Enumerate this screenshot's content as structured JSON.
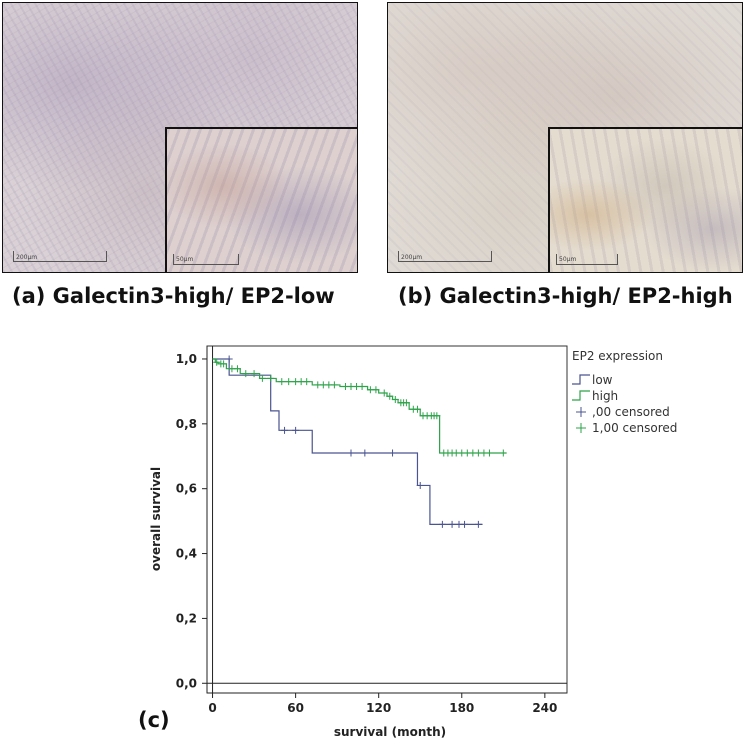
{
  "panels": [
    {
      "caption": "(a) Galectin3-high/ EP2-low",
      "scale_main": "200µm",
      "scale_inset": "50µm"
    },
    {
      "caption": "(b) Galectin3-high/ EP2-high",
      "scale_main": "200µm",
      "scale_inset": "50µm"
    }
  ],
  "panel_c_label": "(c)",
  "chart_data": {
    "type": "line",
    "subtype": "kaplan-meier",
    "title": "",
    "xlabel": "survival (month)",
    "ylabel": "overall survival",
    "xlim": [
      -4,
      256
    ],
    "ylim": [
      -0.03,
      1.04
    ],
    "xticks": [
      0,
      60,
      120,
      180,
      240
    ],
    "yticks": [
      0.0,
      0.2,
      0.4,
      0.6,
      0.8,
      1.0
    ],
    "xtick_labels": [
      "0",
      "60",
      "120",
      "180",
      "240"
    ],
    "ytick_labels": [
      "0,0",
      "0,2",
      "0,4",
      "0,6",
      "0,8",
      "1,0"
    ],
    "legend": {
      "title": "EP2 expression",
      "placement": "top-right",
      "entries": [
        "low",
        "high",
        ",00 censored",
        "1,00 censored"
      ]
    },
    "series": [
      {
        "name": "low",
        "color": "#4a5490",
        "steps": [
          [
            0,
            1.0
          ],
          [
            12,
            0.95
          ],
          [
            42,
            0.84
          ],
          [
            48,
            0.78
          ],
          [
            72,
            0.71
          ],
          [
            148,
            0.61
          ],
          [
            157,
            0.49
          ],
          [
            195,
            0.49
          ]
        ],
        "censored": [
          [
            12,
            1.0
          ],
          [
            52,
            0.78
          ],
          [
            60,
            0.78
          ],
          [
            100,
            0.71
          ],
          [
            110,
            0.71
          ],
          [
            130,
            0.71
          ],
          [
            150,
            0.61
          ],
          [
            166,
            0.49
          ],
          [
            173,
            0.49
          ],
          [
            178,
            0.49
          ],
          [
            182,
            0.49
          ],
          [
            192,
            0.49
          ]
        ]
      },
      {
        "name": "high",
        "color": "#2ea34a",
        "steps": [
          [
            0,
            1.0
          ],
          [
            2,
            0.99
          ],
          [
            4,
            0.985
          ],
          [
            10,
            0.97
          ],
          [
            20,
            0.955
          ],
          [
            34,
            0.94
          ],
          [
            46,
            0.93
          ],
          [
            72,
            0.92
          ],
          [
            92,
            0.915
          ],
          [
            112,
            0.905
          ],
          [
            120,
            0.895
          ],
          [
            126,
            0.885
          ],
          [
            130,
            0.875
          ],
          [
            134,
            0.865
          ],
          [
            142,
            0.845
          ],
          [
            150,
            0.825
          ],
          [
            164,
            0.71
          ],
          [
            212,
            0.71
          ]
        ],
        "censored": [
          [
            3,
            0.99
          ],
          [
            6,
            0.985
          ],
          [
            8,
            0.985
          ],
          [
            14,
            0.97
          ],
          [
            18,
            0.97
          ],
          [
            24,
            0.955
          ],
          [
            30,
            0.955
          ],
          [
            36,
            0.94
          ],
          [
            42,
            0.94
          ],
          [
            50,
            0.93
          ],
          [
            55,
            0.93
          ],
          [
            60,
            0.93
          ],
          [
            64,
            0.93
          ],
          [
            68,
            0.93
          ],
          [
            76,
            0.92
          ],
          [
            80,
            0.92
          ],
          [
            84,
            0.92
          ],
          [
            88,
            0.92
          ],
          [
            96,
            0.915
          ],
          [
            100,
            0.915
          ],
          [
            104,
            0.915
          ],
          [
            108,
            0.915
          ],
          [
            114,
            0.905
          ],
          [
            118,
            0.905
          ],
          [
            124,
            0.895
          ],
          [
            128,
            0.885
          ],
          [
            132,
            0.875
          ],
          [
            136,
            0.865
          ],
          [
            138,
            0.865
          ],
          [
            140,
            0.865
          ],
          [
            145,
            0.845
          ],
          [
            148,
            0.845
          ],
          [
            152,
            0.825
          ],
          [
            155,
            0.825
          ],
          [
            158,
            0.825
          ],
          [
            160,
            0.825
          ],
          [
            162,
            0.825
          ],
          [
            167,
            0.71
          ],
          [
            170,
            0.71
          ],
          [
            173,
            0.71
          ],
          [
            176,
            0.71
          ],
          [
            180,
            0.71
          ],
          [
            184,
            0.71
          ],
          [
            188,
            0.71
          ],
          [
            192,
            0.71
          ],
          [
            196,
            0.71
          ],
          [
            200,
            0.71
          ],
          [
            210,
            0.71
          ]
        ]
      }
    ]
  }
}
